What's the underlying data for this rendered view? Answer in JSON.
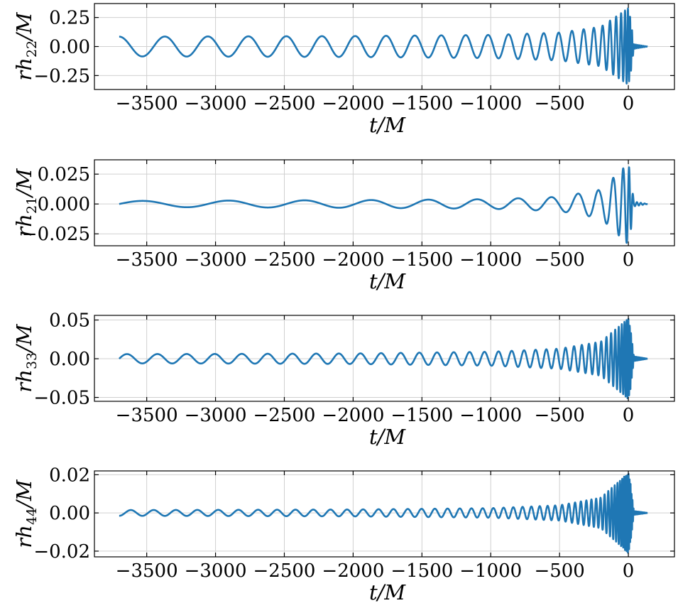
{
  "chart_data": [
    {
      "type": "line",
      "ylabel": {
        "main": "rh",
        "sub": "22",
        "tail": "/M"
      },
      "xlabel": "t/M",
      "xlim": [
        -3880,
        335
      ],
      "ylim": [
        -0.37,
        0.37
      ],
      "yticks": [
        0.25,
        0.0,
        -0.25
      ],
      "ytick_labels": [
        "0.25",
        "0.00",
        "−0.25"
      ],
      "xticks": [
        -3500,
        -3000,
        -2500,
        -2000,
        -1500,
        -1000,
        -500,
        0
      ],
      "xtick_labels": [
        "−3500",
        "−3000",
        "−2500",
        "−2000",
        "−1500",
        "−1000",
        "−500",
        "0"
      ],
      "grid": true,
      "series": [
        {
          "amplitude": 0.085,
          "peak": 0.33,
          "cycles": 34,
          "start_value": 0.085,
          "x": [
            -3700,
            -3000,
            -2000,
            -1000,
            -500,
            -200,
            0,
            15,
            40,
            140
          ],
          "y_envelope": [
            0.085,
            0.087,
            0.09,
            0.1,
            0.12,
            0.17,
            0.33,
            0.25,
            0.02,
            0.0
          ]
        }
      ]
    },
    {
      "type": "line",
      "ylabel": {
        "main": "rh",
        "sub": "21",
        "tail": "/M"
      },
      "xlabel": "t/M",
      "xlim": [
        -3880,
        335
      ],
      "ylim": [
        -0.035,
        0.037
      ],
      "yticks": [
        0.025,
        0.0,
        -0.025
      ],
      "ytick_labels": [
        "0.025",
        "0.000",
        "−0.025"
      ],
      "xticks": [
        -3500,
        -3000,
        -2500,
        -2000,
        -1500,
        -1000,
        -500,
        0
      ],
      "xtick_labels": [
        "−3500",
        "−3000",
        "−2500",
        "−2000",
        "−1500",
        "−1000",
        "−500",
        "0"
      ],
      "grid": true,
      "series": [
        {
          "amplitude": 0.0025,
          "peak": 0.034,
          "cycles": 17,
          "start_value": 0.0,
          "x": [
            -3700,
            -3000,
            -2000,
            -1000,
            -500,
            -200,
            0,
            15,
            40,
            140
          ],
          "y_envelope": [
            0.0025,
            0.0028,
            0.0032,
            0.004,
            0.006,
            0.012,
            0.034,
            0.025,
            0.002,
            0.0
          ]
        }
      ]
    },
    {
      "type": "line",
      "ylabel": {
        "main": "rh",
        "sub": "33",
        "tail": "/M"
      },
      "xlabel": "t/M",
      "xlim": [
        -3880,
        335
      ],
      "ylim": [
        -0.055,
        0.056
      ],
      "yticks": [
        0.05,
        0.0,
        -0.05
      ],
      "ytick_labels": [
        "0.05",
        "0.00",
        "−0.05"
      ],
      "xticks": [
        -3500,
        -3000,
        -2500,
        -2000,
        -1500,
        -1000,
        -500,
        0
      ],
      "xtick_labels": [
        "−3500",
        "−3000",
        "−2500",
        "−2000",
        "−1500",
        "−1000",
        "−500",
        "0"
      ],
      "grid": true,
      "series": [
        {
          "amplitude": 0.006,
          "peak": 0.052,
          "cycles": 51,
          "start_value": 0.0,
          "x": [
            -3700,
            -3000,
            -2000,
            -1000,
            -500,
            -200,
            0,
            15,
            40,
            140
          ],
          "y_envelope": [
            0.006,
            0.0062,
            0.0068,
            0.009,
            0.013,
            0.022,
            0.052,
            0.04,
            0.003,
            0.0
          ]
        }
      ]
    },
    {
      "type": "line",
      "ylabel": {
        "main": "rh",
        "sub": "44",
        "tail": "/M"
      },
      "xlabel": "t/M",
      "xlim": [
        -3880,
        335
      ],
      "ylim": [
        -0.023,
        0.022
      ],
      "yticks": [
        0.02,
        0.0,
        -0.02
      ],
      "ytick_labels": [
        "0.02",
        "0.00",
        "−0.02"
      ],
      "xticks": [
        -3500,
        -3000,
        -2500,
        -2000,
        -1500,
        -1000,
        -500,
        0
      ],
      "xtick_labels": [
        "−3500",
        "−3000",
        "−2500",
        "−2000",
        "−1500",
        "−1000",
        "−500",
        "0"
      ],
      "grid": true,
      "series": [
        {
          "amplitude": 0.0015,
          "peak": 0.021,
          "cycles": 68,
          "start_value": -0.0015,
          "x": [
            -3700,
            -3000,
            -2000,
            -1000,
            -500,
            -200,
            0,
            15,
            40,
            140
          ],
          "y_envelope": [
            0.0015,
            0.0016,
            0.0018,
            0.0025,
            0.004,
            0.008,
            0.021,
            0.016,
            0.001,
            0.0
          ]
        }
      ]
    }
  ],
  "colors": {
    "trace": "#1f77b4",
    "grid": "#d0d0d0",
    "axis": "#000000"
  }
}
